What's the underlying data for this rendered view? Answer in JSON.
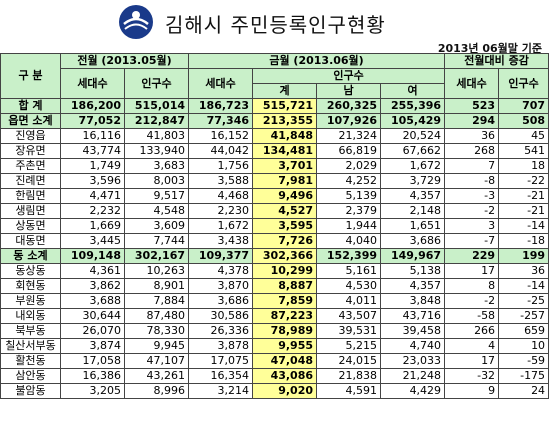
{
  "header": {
    "title": "김해시 주민등록인구현황",
    "date_note": "2013년 06월말 기준",
    "logo_icon": "gimhae-city-emblem-icon"
  },
  "table": {
    "h_gubun": "구  분",
    "h_prev": "전월 (2013.05월)",
    "h_curr": "금월 (2013.06월)",
    "h_diff": "전월대비 증감",
    "h_hh": "세대수",
    "h_pop": "인구수",
    "h_total": "계",
    "h_male": "남",
    "h_female": "여",
    "rows": [
      {
        "name": "합  계",
        "p_hh": "186,200",
        "p_pop": "515,014",
        "c_hh": "186,723",
        "c_tot": "515,721",
        "c_m": "260,325",
        "c_f": "255,396",
        "d_hh": "523",
        "d_pop": "707",
        "type": "total"
      },
      {
        "name": "읍면 소계",
        "p_hh": "77,052",
        "p_pop": "212,847",
        "c_hh": "77,346",
        "c_tot": "213,355",
        "c_m": "107,926",
        "c_f": "105,429",
        "d_hh": "294",
        "d_pop": "508",
        "type": "total"
      },
      {
        "name": "진영읍",
        "p_hh": "16,116",
        "p_pop": "41,803",
        "c_hh": "16,152",
        "c_tot": "41,848",
        "c_m": "21,324",
        "c_f": "20,524",
        "d_hh": "36",
        "d_pop": "45",
        "type": "row"
      },
      {
        "name": "장유면",
        "p_hh": "43,774",
        "p_pop": "133,940",
        "c_hh": "44,042",
        "c_tot": "134,481",
        "c_m": "66,819",
        "c_f": "67,662",
        "d_hh": "268",
        "d_pop": "541",
        "type": "row"
      },
      {
        "name": "주촌면",
        "p_hh": "1,749",
        "p_pop": "3,683",
        "c_hh": "1,756",
        "c_tot": "3,701",
        "c_m": "2,029",
        "c_f": "1,672",
        "d_hh": "7",
        "d_pop": "18",
        "type": "row"
      },
      {
        "name": "진례면",
        "p_hh": "3,596",
        "p_pop": "8,003",
        "c_hh": "3,588",
        "c_tot": "7,981",
        "c_m": "4,252",
        "c_f": "3,729",
        "d_hh": "-8",
        "d_pop": "-22",
        "type": "row"
      },
      {
        "name": "한림면",
        "p_hh": "4,471",
        "p_pop": "9,517",
        "c_hh": "4,468",
        "c_tot": "9,496",
        "c_m": "5,139",
        "c_f": "4,357",
        "d_hh": "-3",
        "d_pop": "-21",
        "type": "row"
      },
      {
        "name": "생림면",
        "p_hh": "2,232",
        "p_pop": "4,548",
        "c_hh": "2,230",
        "c_tot": "4,527",
        "c_m": "2,379",
        "c_f": "2,148",
        "d_hh": "-2",
        "d_pop": "-21",
        "type": "row"
      },
      {
        "name": "상동면",
        "p_hh": "1,669",
        "p_pop": "3,609",
        "c_hh": "1,672",
        "c_tot": "3,595",
        "c_m": "1,944",
        "c_f": "1,651",
        "d_hh": "3",
        "d_pop": "-14",
        "type": "row"
      },
      {
        "name": "대동면",
        "p_hh": "3,445",
        "p_pop": "7,744",
        "c_hh": "3,438",
        "c_tot": "7,726",
        "c_m": "4,040",
        "c_f": "3,686",
        "d_hh": "-7",
        "d_pop": "-18",
        "type": "row"
      },
      {
        "name": "동 소계",
        "p_hh": "109,148",
        "p_pop": "302,167",
        "c_hh": "109,377",
        "c_tot": "302,366",
        "c_m": "152,399",
        "c_f": "149,967",
        "d_hh": "229",
        "d_pop": "199",
        "type": "total"
      },
      {
        "name": "동상동",
        "p_hh": "4,361",
        "p_pop": "10,263",
        "c_hh": "4,378",
        "c_tot": "10,299",
        "c_m": "5,161",
        "c_f": "5,138",
        "d_hh": "17",
        "d_pop": "36",
        "type": "row"
      },
      {
        "name": "회현동",
        "p_hh": "3,862",
        "p_pop": "8,901",
        "c_hh": "3,870",
        "c_tot": "8,887",
        "c_m": "4,530",
        "c_f": "4,357",
        "d_hh": "8",
        "d_pop": "-14",
        "type": "row"
      },
      {
        "name": "부원동",
        "p_hh": "3,688",
        "p_pop": "7,884",
        "c_hh": "3,686",
        "c_tot": "7,859",
        "c_m": "4,011",
        "c_f": "3,848",
        "d_hh": "-2",
        "d_pop": "-25",
        "type": "row"
      },
      {
        "name": "내외동",
        "p_hh": "30,644",
        "p_pop": "87,480",
        "c_hh": "30,586",
        "c_tot": "87,223",
        "c_m": "43,507",
        "c_f": "43,716",
        "d_hh": "-58",
        "d_pop": "-257",
        "type": "row"
      },
      {
        "name": "북부동",
        "p_hh": "26,070",
        "p_pop": "78,330",
        "c_hh": "26,336",
        "c_tot": "78,989",
        "c_m": "39,531",
        "c_f": "39,458",
        "d_hh": "266",
        "d_pop": "659",
        "type": "row"
      },
      {
        "name": "칠산서부동",
        "p_hh": "3,874",
        "p_pop": "9,945",
        "c_hh": "3,878",
        "c_tot": "9,955",
        "c_m": "5,215",
        "c_f": "4,740",
        "d_hh": "4",
        "d_pop": "10",
        "type": "row"
      },
      {
        "name": "활천동",
        "p_hh": "17,058",
        "p_pop": "47,107",
        "c_hh": "17,075",
        "c_tot": "47,048",
        "c_m": "24,015",
        "c_f": "23,033",
        "d_hh": "17",
        "d_pop": "-59",
        "type": "row"
      },
      {
        "name": "삼안동",
        "p_hh": "16,386",
        "p_pop": "43,261",
        "c_hh": "16,354",
        "c_tot": "43,086",
        "c_m": "21,838",
        "c_f": "21,248",
        "d_hh": "-32",
        "d_pop": "-175",
        "type": "row"
      },
      {
        "name": "불암동",
        "p_hh": "3,205",
        "p_pop": "8,996",
        "c_hh": "3,214",
        "c_tot": "9,020",
        "c_m": "4,591",
        "c_f": "4,429",
        "d_hh": "9",
        "d_pop": "24",
        "type": "row"
      }
    ]
  }
}
